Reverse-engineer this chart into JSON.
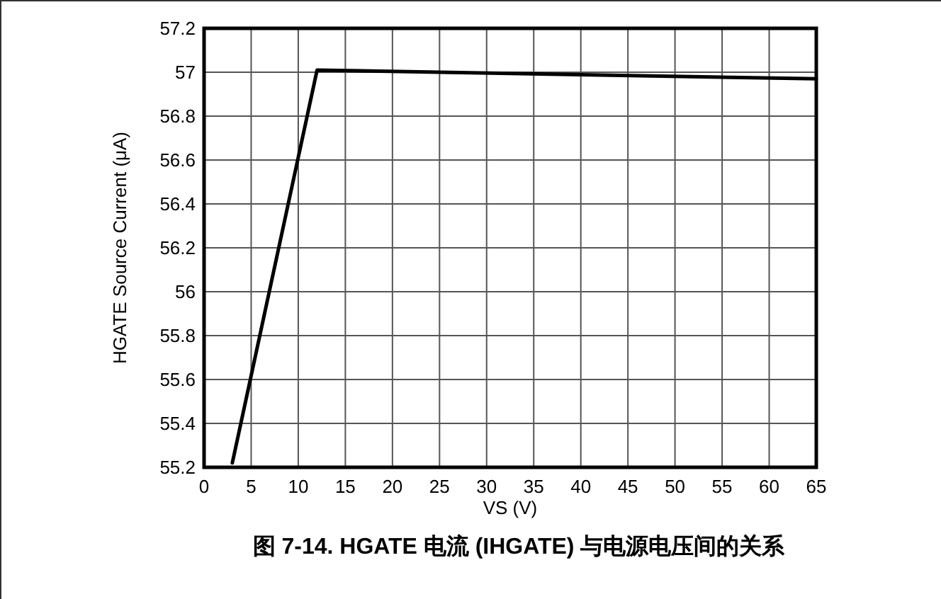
{
  "chart_data": {
    "type": "line",
    "title": "图 7-14. HGATE 电流 (IHGATE) 与电源电压间的关系",
    "xlabel": "VS (V)",
    "ylabel": "HGATE Source Current (μA)",
    "x": [
      3,
      12,
      25,
      65
    ],
    "series": [
      {
        "color": "#000000",
        "values": [
          55.22,
          57.01,
          57.0,
          56.97
        ]
      }
    ],
    "xlim": [
      0,
      65
    ],
    "xticks": [
      0,
      5,
      10,
      15,
      20,
      25,
      30,
      35,
      40,
      45,
      50,
      55,
      60,
      65
    ],
    "ylim": [
      55.2,
      57.2
    ],
    "yticks": [
      55.2,
      55.4,
      55.6,
      55.8,
      56,
      56.2,
      56.4,
      56.6,
      56.8,
      57,
      57.2
    ],
    "grid": true,
    "marker": "none",
    "line_style": "solid"
  }
}
